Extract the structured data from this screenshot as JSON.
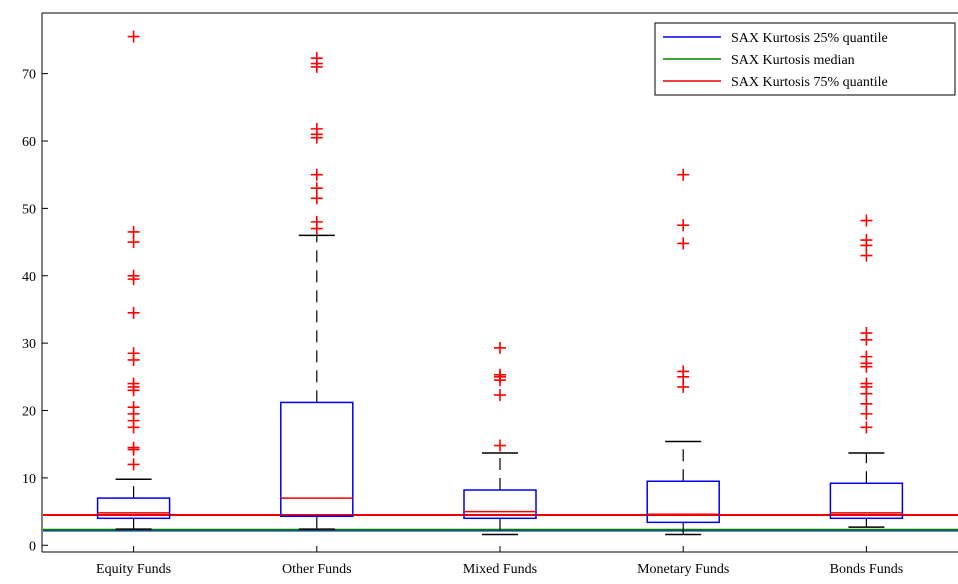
{
  "chart_data": {
    "type": "box",
    "categories": [
      "Equity Funds",
      "Other Funds",
      "Mixed Funds",
      "Monetary Funds",
      "Bonds Funds"
    ],
    "boxes": [
      {
        "category": "Equity Funds",
        "whisker_low": 2.4,
        "q1": 4.0,
        "median": 4.8,
        "q3": 7.0,
        "whisker_high": 9.8,
        "outliers": [
          12.0,
          14.5,
          14.2,
          17.5,
          18.5,
          19.5,
          20.5,
          23.0,
          23.5,
          24.0,
          27.5,
          28.5,
          34.5,
          39.5,
          40.0,
          45.0,
          46.5,
          75.5
        ]
      },
      {
        "category": "Other Funds",
        "whisker_low": 2.4,
        "q1": 4.3,
        "median": 7.0,
        "q3": 21.2,
        "whisker_high": 46.0,
        "outliers": [
          47.0,
          48.0,
          51.5,
          53.0,
          55.0,
          60.5,
          61.0,
          61.8,
          71.0,
          71.5,
          72.3
        ]
      },
      {
        "category": "Mixed Funds",
        "whisker_low": 1.6,
        "q1": 4.0,
        "median": 5.0,
        "q3": 8.2,
        "whisker_high": 13.7,
        "outliers": [
          14.8,
          22.3,
          24.5,
          25.0,
          25.3,
          29.3
        ]
      },
      {
        "category": "Monetary Funds",
        "whisker_low": 1.6,
        "q1": 3.4,
        "median": 4.6,
        "q3": 9.5,
        "whisker_high": 15.4,
        "outliers": [
          23.5,
          25.0,
          25.8,
          44.8,
          47.5,
          55.0
        ]
      },
      {
        "category": "Bonds Funds",
        "whisker_low": 2.7,
        "q1": 4.0,
        "median": 4.8,
        "q3": 9.2,
        "whisker_high": 13.7,
        "outliers": [
          17.5,
          19.5,
          21.0,
          22.5,
          23.5,
          24.0,
          26.5,
          27.0,
          28.0,
          30.5,
          31.5,
          43.0,
          44.5,
          45.3,
          48.2
        ]
      }
    ],
    "reference_lines": [
      {
        "name": "SAX Kurtosis 25% quantile",
        "value": 2.2,
        "color": "#0000ee"
      },
      {
        "name": "SAX Kurtosis median",
        "value": 2.3,
        "color": "#008000"
      },
      {
        "name": "SAX Kurtosis 75% quantile",
        "value": 4.5,
        "color": "#ee0000"
      }
    ],
    "y_ticks": [
      0,
      10,
      20,
      30,
      40,
      50,
      60,
      70
    ],
    "ylim": [
      -1,
      79
    ],
    "legend_position": "top-right",
    "colors": {
      "box": "#0000ee",
      "median": "#ee0000",
      "whisker": "#000000",
      "outlier": "#ff0000"
    }
  }
}
